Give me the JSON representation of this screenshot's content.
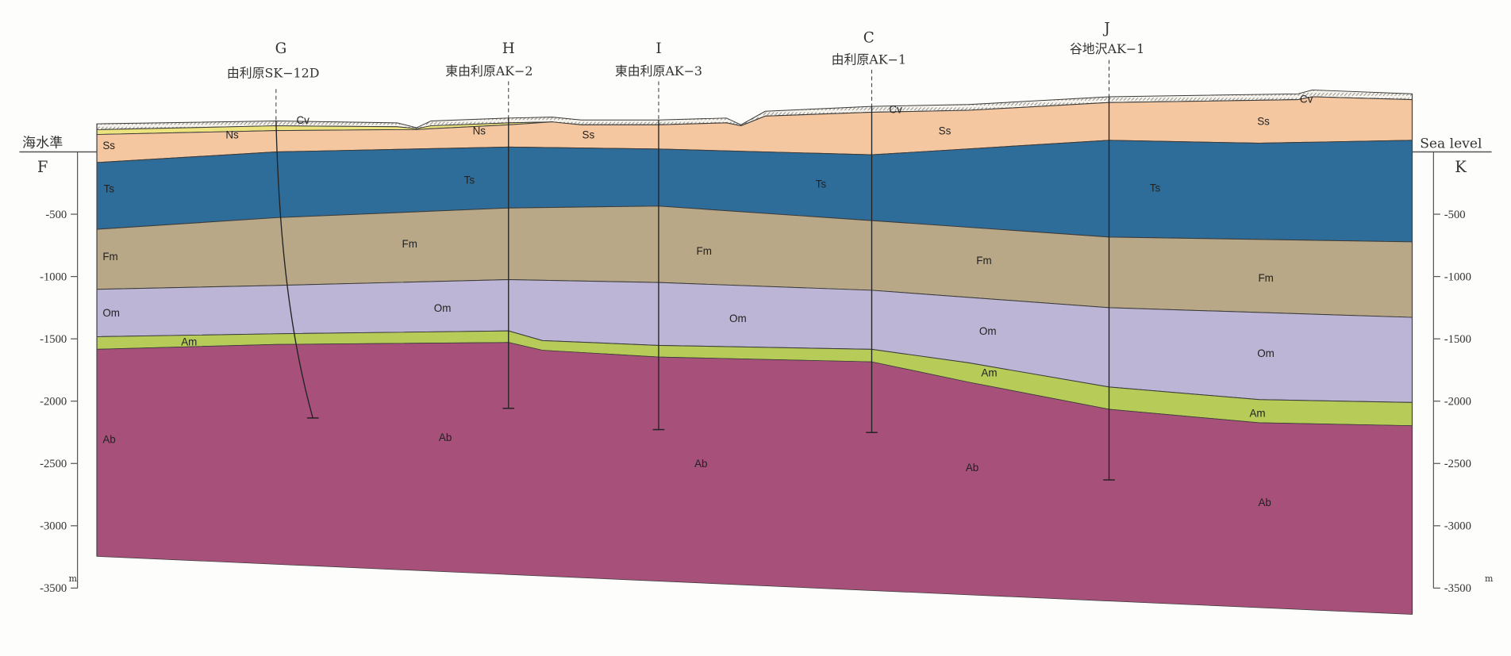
{
  "left_axis": {
    "top_label": "海水準",
    "end_label": "F",
    "unit": "m",
    "ticks": [
      "-500",
      "-1000",
      "-1500",
      "-2000",
      "-2500",
      "-3000",
      "-3500"
    ]
  },
  "right_axis": {
    "top_label": "Sea level",
    "end_label": "K",
    "unit": "m",
    "ticks": [
      "-500",
      "-1000",
      "-1500",
      "-2000",
      "-2500",
      "-3000",
      "-3500"
    ]
  },
  "boreholes": [
    {
      "letter": "G",
      "name": "由利原SK−12D"
    },
    {
      "letter": "H",
      "name": "東由利原AK−2"
    },
    {
      "letter": "I",
      "name": "東由利原AK−3"
    },
    {
      "letter": "C",
      "name": "由利原AK−1"
    },
    {
      "letter": "J",
      "name": "谷地沢AK−1"
    }
  ],
  "layers": [
    {
      "code": "Cv",
      "color": "#f4f1ea"
    },
    {
      "code": "Ns",
      "color": "#ece37f"
    },
    {
      "code": "Ss",
      "color": "#f4c7a0"
    },
    {
      "code": "Ts",
      "color": "#2e6d99"
    },
    {
      "code": "Fm",
      "color": "#b8a887"
    },
    {
      "code": "Om",
      "color": "#bcb5d5"
    },
    {
      "code": "Am",
      "color": "#b7cb58"
    },
    {
      "code": "Ab",
      "color": "#a6507a"
    }
  ]
}
